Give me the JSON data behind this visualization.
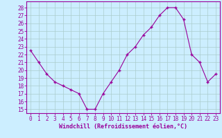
{
  "x": [
    0,
    1,
    2,
    3,
    4,
    5,
    6,
    7,
    8,
    9,
    10,
    11,
    12,
    13,
    14,
    15,
    16,
    17,
    18,
    19,
    20,
    21,
    22,
    23
  ],
  "y": [
    22.5,
    21.0,
    19.5,
    18.5,
    18.0,
    17.5,
    17.0,
    15.0,
    15.0,
    17.0,
    18.5,
    20.0,
    22.0,
    23.0,
    24.5,
    25.5,
    27.0,
    28.0,
    28.0,
    26.5,
    22.0,
    21.0,
    18.5,
    19.5
  ],
  "line_color": "#990099",
  "marker": "+",
  "marker_size": 3,
  "bg_color": "#cceeff",
  "grid_color": "#aacccc",
  "xlabel": "Windchill (Refroidissement éolien,°C)",
  "xlabel_color": "#990099",
  "ylabel_ticks": [
    15,
    16,
    17,
    18,
    19,
    20,
    21,
    22,
    23,
    24,
    25,
    26,
    27,
    28
  ],
  "ylim": [
    14.5,
    28.8
  ],
  "xlim": [
    -0.5,
    23.5
  ],
  "xticks": [
    0,
    1,
    2,
    3,
    4,
    5,
    6,
    7,
    8,
    9,
    10,
    11,
    12,
    13,
    14,
    15,
    16,
    17,
    18,
    19,
    20,
    21,
    22,
    23
  ],
  "tick_fontsize": 5.5,
  "xlabel_fontsize": 6.0,
  "tick_color": "#990099",
  "spine_color": "#990099"
}
